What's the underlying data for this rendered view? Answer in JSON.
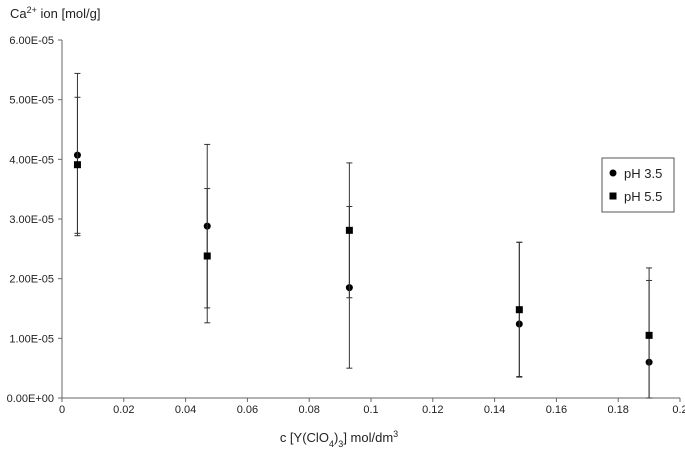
{
  "chart_data": {
    "type": "scatter",
    "title": "",
    "xlabel": {
      "prefix": "c [Y(ClO",
      "sub": "4",
      "mid": ")",
      "sub2": "3",
      "suffix": "] mol/dm",
      "sup": "3"
    },
    "ylabel": {
      "prefix": "Ca",
      "sup": "2+",
      "suffix": " ion [mol/g]"
    },
    "xlim": [
      0,
      0.2
    ],
    "ylim": [
      0,
      6e-05
    ],
    "x_ticks": [
      "0",
      "0.02",
      "0.04",
      "0.06",
      "0.08",
      "0.1",
      "0.12",
      "0.14",
      "0.16",
      "0.18",
      "0.2"
    ],
    "y_ticks": [
      "0.00E+00",
      "1.00E-05",
      "2.00E-05",
      "3.00E-05",
      "4.00E-05",
      "5.00E-05",
      "6.00E-05"
    ],
    "grid": false,
    "legend_position": "right",
    "error_bars": true,
    "series": [
      {
        "name": "pH 3.5",
        "marker": "circle",
        "x": [
          0.005,
          0.047,
          0.093,
          0.148,
          0.19
        ],
        "y": [
          4.07e-05,
          2.88e-05,
          1.85e-05,
          1.24e-05,
          6e-06
        ],
        "err_low": [
          2.72e-05,
          1.51e-05,
          5e-06,
          3.6e-06,
          0.0
        ],
        "err_high": [
          5.44e-05,
          4.25e-05,
          3.21e-05,
          2.61e-05,
          1.97e-05
        ]
      },
      {
        "name": "pH 5.5",
        "marker": "square",
        "x": [
          0.005,
          0.047,
          0.093,
          0.148,
          0.19
        ],
        "y": [
          3.91e-05,
          2.38e-05,
          2.81e-05,
          1.48e-05,
          1.05e-05
        ],
        "err_low": [
          2.76e-05,
          1.26e-05,
          1.68e-05,
          3.5e-06,
          0.0
        ],
        "err_high": [
          5.04e-05,
          3.51e-05,
          3.94e-05,
          2.61e-05,
          2.18e-05
        ]
      }
    ]
  }
}
